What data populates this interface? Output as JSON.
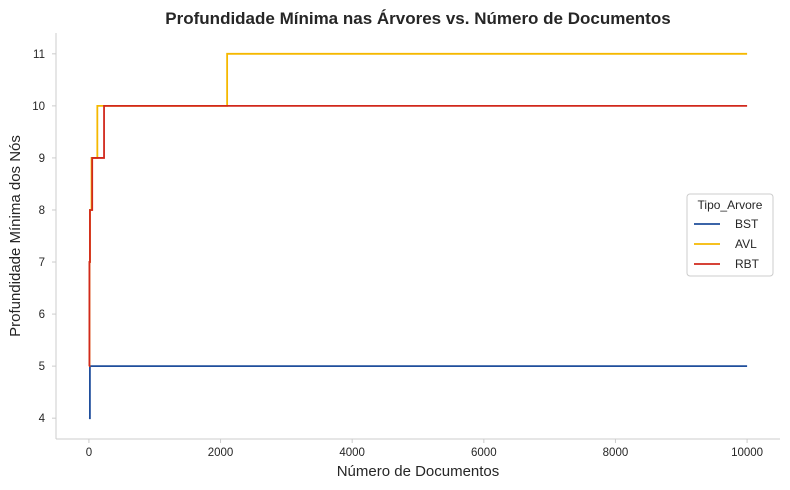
{
  "chart_data": {
    "type": "line",
    "step": true,
    "title": "Profundidade Mínima nas Árvores vs. Número de Documentos",
    "xlabel": "Número de Documentos",
    "ylabel": "Profundidade Mínima dos Nós",
    "xlim": [
      -500,
      10500
    ],
    "ylim": [
      3.6,
      11.4
    ],
    "xticks": [
      0,
      2000,
      4000,
      6000,
      8000,
      10000
    ],
    "xtick_labels": [
      "0",
      "2000",
      "4000",
      "6000",
      "8000",
      "10000"
    ],
    "yticks": [
      4,
      5,
      6,
      7,
      8,
      9,
      10,
      11
    ],
    "ytick_labels": [
      "4",
      "5",
      "6",
      "7",
      "8",
      "9",
      "10",
      "11"
    ],
    "grid": false,
    "legend": {
      "title": "Tipo_Arvore",
      "placement": "center-right"
    },
    "series": [
      {
        "name": "BST",
        "color": "#1f4e9c",
        "points": [
          [
            1,
            4
          ],
          [
            15,
            5
          ],
          [
            10000,
            5
          ]
        ]
      },
      {
        "name": "AVL",
        "color": "#f5b800",
        "points": [
          [
            1,
            5
          ],
          [
            8,
            7
          ],
          [
            16,
            8
          ],
          [
            40,
            9
          ],
          [
            128,
            10
          ],
          [
            2100,
            11
          ],
          [
            10000,
            11
          ]
        ]
      },
      {
        "name": "RBT",
        "color": "#d1281c",
        "points": [
          [
            1,
            5
          ],
          [
            8,
            7
          ],
          [
            16,
            8
          ],
          [
            50,
            9
          ],
          [
            230,
            10
          ],
          [
            10000,
            10
          ]
        ]
      }
    ]
  }
}
